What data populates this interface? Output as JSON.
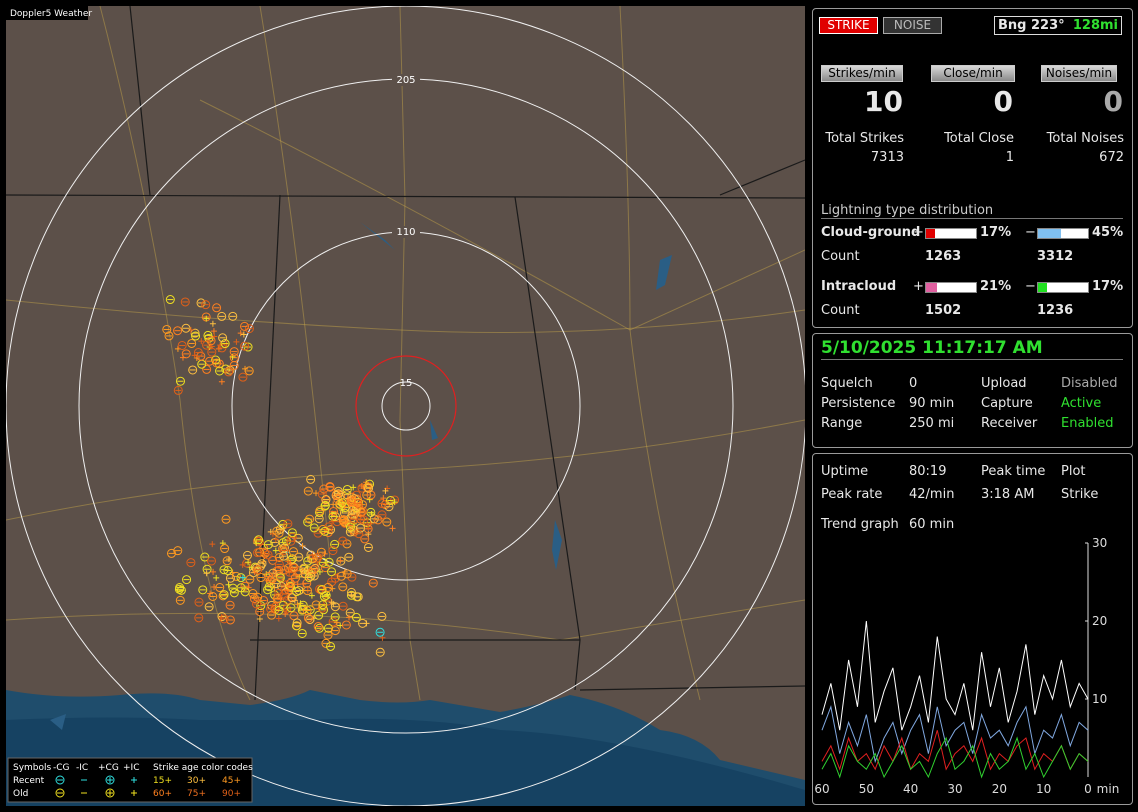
{
  "title": "Doppler5 Weather",
  "map": {
    "ring_labels": [
      "205",
      "110",
      "15"
    ],
    "legend": {
      "symbols_label": "Symbols",
      "symbol_types": [
        "-CG",
        "-IC",
        "+CG",
        "+IC"
      ],
      "age_label": "Strike age color codes",
      "row_labels": [
        "Recent",
        "Old"
      ],
      "ages": [
        [
          "15+",
          "30+",
          "45+"
        ],
        [
          "60+",
          "75+",
          "90+"
        ]
      ]
    }
  },
  "status": {
    "strike_button": "STRIKE",
    "noise_button": "NOISE",
    "bearing": "Bng 223°",
    "distance": "128mi",
    "rates": [
      {
        "label": "Strikes/min",
        "value": 10,
        "total_label": "Total Strikes",
        "total": 7313
      },
      {
        "label": "Close/min",
        "value": 0,
        "total_label": "Total Close",
        "total": 1
      },
      {
        "label": "Noises/min",
        "value": 0,
        "total_label": "Total Noises",
        "total": 672
      }
    ],
    "distribution_title": "Lightning type distribution",
    "distribution": [
      {
        "name": "Cloud-ground",
        "signs": [
          "+",
          "−"
        ],
        "values": [
          17,
          45
        ],
        "value_labels": [
          "17%",
          "45%"
        ],
        "colors": [
          "#e00000",
          "#80c0f0"
        ],
        "count_label": "Count",
        "counts": [
          1263,
          3312
        ]
      },
      {
        "name": "Intracloud",
        "signs": [
          "+",
          "−"
        ],
        "values": [
          21,
          17
        ],
        "value_labels": [
          "21%",
          "17%"
        ],
        "colors": [
          "#e060a0",
          "#20e020"
        ],
        "count_label": "Count",
        "counts": [
          1502,
          1236
        ]
      }
    ]
  },
  "info": {
    "datetime": "5/10/2025 11:17:17 AM",
    "rows": [
      [
        "Squelch",
        "0",
        "Upload",
        "Disabled"
      ],
      [
        "Persistence",
        "90 min",
        "Capture",
        "Active"
      ],
      [
        "Range",
        "250 mi",
        "Receiver",
        "Enabled"
      ]
    ]
  },
  "stats": {
    "uptime_label": "Uptime",
    "uptime": "80:19",
    "peak_time_label": "Peak time",
    "peak_time": "3:18 AM",
    "plot_label": "Plot",
    "plot": "Strike",
    "peak_rate_label": "Peak rate",
    "peak_rate": "42/min",
    "trend_label": "Trend graph",
    "trend": "60 min"
  },
  "chart_data": {
    "type": "line",
    "x": [
      60,
      58,
      56,
      54,
      52,
      50,
      48,
      46,
      44,
      42,
      40,
      38,
      36,
      34,
      32,
      30,
      28,
      26,
      24,
      22,
      20,
      18,
      16,
      14,
      12,
      10,
      8,
      6,
      4,
      2,
      0
    ],
    "xlim": [
      60,
      0
    ],
    "ylim": [
      0,
      30
    ],
    "xticks": [
      60,
      50,
      40,
      30,
      20,
      10,
      0
    ],
    "yticks": [
      10,
      20,
      30
    ],
    "x_label": "min",
    "series": [
      {
        "color": "#ffffff",
        "values": [
          8,
          12,
          6,
          15,
          9,
          20,
          7,
          11,
          14,
          6,
          9,
          13,
          7,
          18,
          10,
          8,
          12,
          6,
          16,
          9,
          14,
          7,
          11,
          17,
          8,
          13,
          10,
          15,
          9,
          12,
          10
        ]
      },
      {
        "color": "#80a8e0",
        "values": [
          6,
          9,
          3,
          7,
          4,
          8,
          2,
          5,
          7,
          3,
          6,
          8,
          3,
          9,
          4,
          6,
          7,
          3,
          8,
          5,
          6,
          4,
          7,
          9,
          3,
          6,
          5,
          8,
          4,
          7,
          6
        ]
      },
      {
        "color": "#e02020",
        "values": [
          2,
          4,
          1,
          5,
          2,
          3,
          1,
          4,
          2,
          5,
          1,
          3,
          2,
          6,
          1,
          3,
          4,
          2,
          5,
          1,
          3,
          2,
          4,
          5,
          1,
          3,
          2,
          4,
          1,
          3,
          2
        ]
      },
      {
        "color": "#30d030",
        "values": [
          1,
          3,
          0,
          4,
          2,
          1,
          3,
          0,
          2,
          4,
          1,
          2,
          0,
          3,
          5,
          1,
          2,
          4,
          0,
          3,
          1,
          2,
          5,
          1,
          3,
          0,
          2,
          4,
          1,
          3,
          2
        ]
      }
    ]
  }
}
